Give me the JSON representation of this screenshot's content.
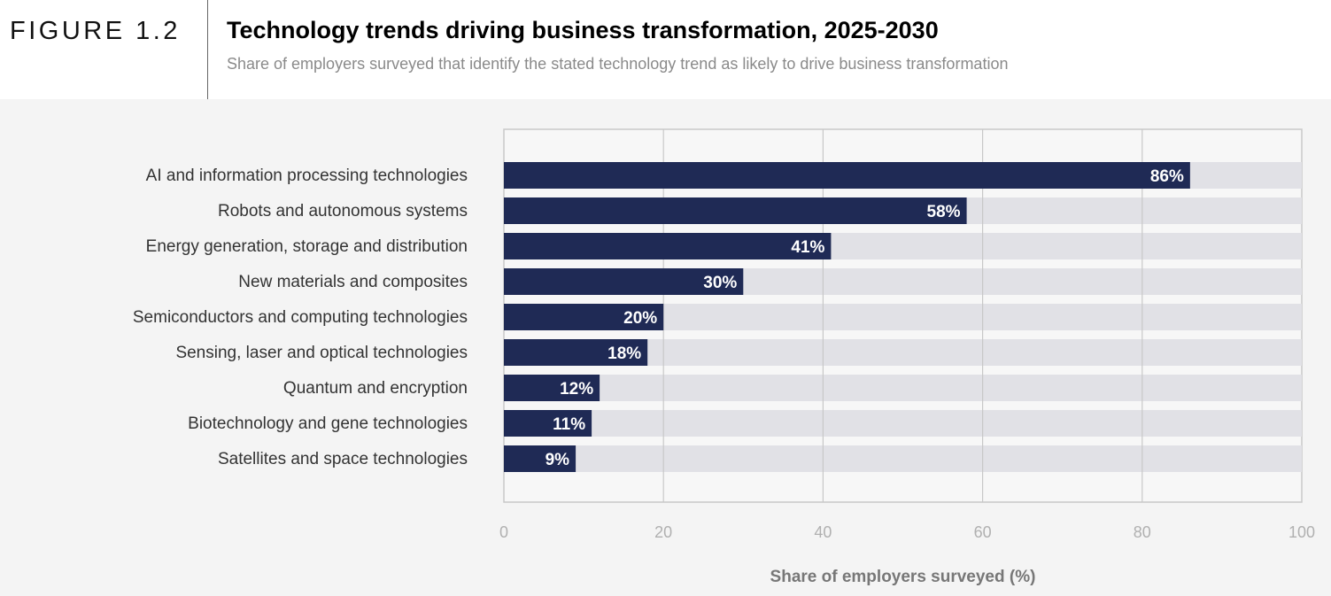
{
  "figure_label": "FIGURE 1.2",
  "chart_data": {
    "type": "bar",
    "orientation": "horizontal",
    "title": "Technology trends driving business transformation, 2025-2030",
    "subtitle": "Share of employers surveyed that identify the stated technology trend as likely to drive business transformation",
    "categories": [
      "AI and information processing technologies",
      "Robots and autonomous systems",
      "Energy generation, storage and distribution",
      "New materials and composites",
      "Semiconductors and computing technologies",
      "Sensing, laser and optical technologies",
      "Quantum and encryption",
      "Biotechnology and gene technologies",
      "Satellites and space technologies"
    ],
    "values": [
      86,
      58,
      41,
      30,
      20,
      18,
      12,
      11,
      9
    ],
    "data_labels": [
      "86%",
      "58%",
      "41%",
      "30%",
      "20%",
      "18%",
      "12%",
      "11%",
      "9%"
    ],
    "xlabel": "Share of employers surveyed (%)",
    "xlim": [
      0,
      100
    ],
    "xticks": [
      "0",
      "20",
      "40",
      "60",
      "80",
      "100"
    ],
    "grid": true,
    "colors": {
      "bar": "#1f2a55",
      "track": "#e1e1e6",
      "grid": "#c8c8c8"
    }
  }
}
